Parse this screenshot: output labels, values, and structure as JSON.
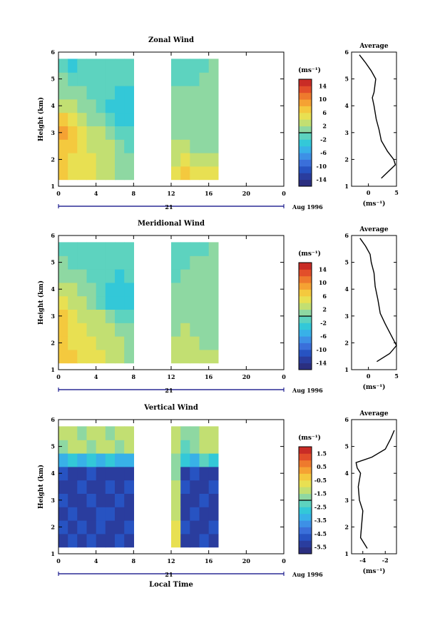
{
  "colors": {
    "palette": [
      "#2b2f80",
      "#2a3d9e",
      "#2753c2",
      "#3a6fda",
      "#3d90e6",
      "#38b1e8",
      "#33c8d8",
      "#5dd3bf",
      "#8ed8a2",
      "#c2df72",
      "#e8e052",
      "#f4c93e",
      "#f5a233",
      "#ee7a2d",
      "#e24e2a",
      "#c92c26"
    ],
    "contour": "#000000",
    "timeline": "#000080"
  },
  "panels": [
    {
      "key": "zonal",
      "title": "Zonal Wind",
      "ylabel": "Height (km)",
      "xlabel": "",
      "xticks": [
        "0",
        "4",
        "8",
        "12",
        "16",
        "20",
        "0"
      ],
      "date_day": "21",
      "date_label": "Aug 1996",
      "unit_label": "(ms⁻¹)",
      "colorbar_ticks": [
        "14",
        "10",
        "6",
        "2",
        "-2",
        "-6",
        "-10",
        "-14"
      ],
      "colorbar_range": [
        -16,
        16
      ],
      "avg_title": "Average",
      "avg_xticks": [
        "0",
        "5"
      ],
      "avg_xlim": [
        -3,
        5
      ],
      "avg_unit": "(ms⁻¹)"
    },
    {
      "key": "meridional",
      "title": "Meridional Wind",
      "ylabel": "Height (km)",
      "xlabel": "",
      "xticks": [
        "0",
        "4",
        "8",
        "12",
        "16",
        "20",
        "0"
      ],
      "date_day": "21",
      "date_label": "Aug 1996",
      "unit_label": "(ms⁻¹)",
      "colorbar_ticks": [
        "14",
        "10",
        "6",
        "2",
        "-2",
        "-6",
        "-10",
        "-14"
      ],
      "colorbar_range": [
        -16,
        16
      ],
      "avg_title": "Average",
      "avg_xticks": [
        "0",
        "5"
      ],
      "avg_xlim": [
        -3,
        5
      ],
      "avg_unit": "(ms⁻¹)"
    },
    {
      "key": "vertical",
      "title": "Vertical Wind",
      "ylabel": "Height (km)",
      "xlabel": "Local Time",
      "xticks": [
        "0",
        "4",
        "8",
        "12",
        "16",
        "20",
        "0"
      ],
      "date_day": "21",
      "date_label": "Aug 1996",
      "unit_label": "(ms⁻¹)",
      "colorbar_ticks": [
        "1.5",
        "0.5",
        "-0.5",
        "-1.5",
        "-2.5",
        "-3.5",
        "-4.5",
        "-5.5"
      ],
      "colorbar_range": [
        -6,
        2
      ],
      "avg_title": "Average",
      "avg_xticks": [
        "-4",
        "-2"
      ],
      "avg_xlim": [
        -5,
        -1
      ],
      "avg_unit": "(ms⁻¹)"
    }
  ],
  "chart_data": [
    {
      "type": "heatmap",
      "title": "Zonal Wind",
      "xlabel": "",
      "ylabel": "Height (km)",
      "xlim": [
        0,
        24
      ],
      "ylim": [
        1,
        6
      ],
      "colorbar_label": "(ms⁻¹)",
      "colorbar_range": [
        -16,
        16
      ],
      "time_hours": [
        0,
        1,
        2,
        3,
        4,
        5,
        6,
        7,
        12,
        13,
        14,
        15,
        16
      ],
      "heights_km": [
        1.5,
        2.0,
        2.5,
        3.0,
        3.5,
        4.0,
        4.5,
        5.0,
        5.5
      ],
      "values": [
        [
          6,
          5,
          4,
          4,
          3,
          3,
          1,
          0,
          4,
          6,
          5,
          4,
          4
        ],
        [
          6,
          5,
          4,
          4,
          3,
          3,
          1,
          0,
          3,
          4,
          3,
          2,
          2
        ],
        [
          7,
          6,
          4,
          3,
          3,
          2,
          0,
          -1,
          2,
          2,
          1,
          1,
          1
        ],
        [
          8,
          6,
          4,
          2,
          2,
          0,
          -2,
          -2,
          1,
          1,
          1,
          0,
          0
        ],
        [
          6,
          4,
          2,
          1,
          0,
          -2,
          -4,
          -4,
          0,
          0,
          1,
          0,
          0
        ],
        [
          3,
          2,
          1,
          0,
          -1,
          -3,
          -4,
          -4,
          0,
          1,
          1,
          0,
          0
        ],
        [
          1,
          0,
          0,
          -1,
          -1,
          -2,
          -3,
          -3,
          0,
          0,
          0,
          0,
          0
        ],
        [
          0,
          -1,
          -1,
          -1,
          -1,
          -1,
          -1,
          -2,
          -1,
          -1,
          -1,
          0,
          0
        ],
        [
          -2,
          -3,
          -2,
          -2,
          -1,
          -1,
          -1,
          -2,
          -1,
          -1,
          -1,
          -1,
          0
        ]
      ]
    },
    {
      "type": "line",
      "title": "Average",
      "xlabel": "(ms⁻¹)",
      "ylabel": "",
      "xlim": [
        -3,
        5
      ],
      "ylim": [
        1,
        6
      ],
      "x": [
        2.3,
        4.8,
        4.5,
        3.4,
        2.3,
        1.9,
        1.4,
        1.0,
        0.7,
        1.0,
        1.3,
        0.5,
        -0.5,
        -1.6
      ],
      "y": [
        1.3,
        1.8,
        2.0,
        2.3,
        2.7,
        3.1,
        3.5,
        4.0,
        4.3,
        4.5,
        5.0,
        5.3,
        5.6,
        5.9
      ]
    },
    {
      "type": "heatmap",
      "title": "Meridional Wind",
      "xlabel": "",
      "ylabel": "Height (km)",
      "xlim": [
        0,
        24
      ],
      "ylim": [
        1,
        6
      ],
      "colorbar_label": "(ms⁻¹)",
      "colorbar_range": [
        -16,
        16
      ],
      "time_hours": [
        0,
        1,
        2,
        3,
        4,
        5,
        6,
        7,
        12,
        13,
        14,
        15,
        16
      ],
      "heights_km": [
        1.5,
        2.0,
        2.5,
        3.0,
        3.5,
        4.0,
        4.5,
        5.0,
        5.5
      ],
      "values": [
        [
          7,
          6,
          5,
          4,
          4,
          3,
          2,
          1,
          3,
          3,
          2,
          2,
          2
        ],
        [
          6,
          5,
          4,
          4,
          3,
          3,
          2,
          1,
          2,
          2,
          2,
          1,
          1
        ],
        [
          6,
          5,
          4,
          3,
          3,
          2,
          1,
          0,
          1,
          2,
          1,
          1,
          0
        ],
        [
          7,
          5,
          3,
          2,
          2,
          0,
          -2,
          -2,
          0,
          1,
          0,
          0,
          0
        ],
        [
          5,
          3,
          2,
          1,
          -1,
          -3,
          -4,
          -4,
          0,
          0,
          1,
          0,
          0
        ],
        [
          3,
          2,
          1,
          0,
          -1,
          -3,
          -4,
          -3,
          0,
          0,
          0,
          0,
          0
        ],
        [
          1,
          0,
          0,
          -1,
          -1,
          -2,
          -3,
          -2,
          -1,
          0,
          0,
          0,
          0
        ],
        [
          0,
          -1,
          -1,
          -1,
          -1,
          -1,
          -1,
          -1,
          -1,
          -1,
          0,
          0,
          0
        ],
        [
          -2,
          -2,
          -2,
          -1,
          -1,
          -1,
          -1,
          -1,
          -1,
          -1,
          -1,
          -1,
          0
        ]
      ]
    },
    {
      "type": "line",
      "title": "Average",
      "xlabel": "(ms⁻¹)",
      "ylabel": "",
      "xlim": [
        -3,
        5
      ],
      "ylim": [
        1,
        6
      ],
      "x": [
        1.5,
        3.8,
        5.0,
        4.0,
        3.0,
        2.1,
        1.7,
        1.2,
        1.0,
        0.5,
        0.3,
        -0.5,
        -1.5
      ],
      "y": [
        1.3,
        1.6,
        1.9,
        2.3,
        2.7,
        3.1,
        3.6,
        4.1,
        4.6,
        5.0,
        5.3,
        5.6,
        5.9
      ]
    },
    {
      "type": "heatmap",
      "title": "Vertical Wind",
      "xlabel": "Local Time",
      "ylabel": "Height (km)",
      "xlim": [
        0,
        24
      ],
      "ylim": [
        1,
        6
      ],
      "colorbar_label": "(ms⁻¹)",
      "colorbar_range": [
        -6,
        2
      ],
      "time_hours": [
        0,
        1,
        2,
        3,
        4,
        5,
        6,
        7,
        12,
        13,
        14,
        15,
        16
      ],
      "heights_km": [
        1.5,
        2.0,
        2.5,
        3.0,
        3.5,
        4.0,
        4.5,
        5.0,
        5.5
      ],
      "values": [
        [
          -5.5,
          -5.0,
          -5.5,
          -5.0,
          -5.5,
          -5.5,
          -5.0,
          -5.5,
          -1.0,
          -5.5,
          -5.5,
          -5.0,
          -5.5
        ],
        [
          -5.0,
          -5.5,
          -5.0,
          -5.5,
          -5.0,
          -5.5,
          -5.5,
          -5.0,
          -0.8,
          -5.0,
          -5.5,
          -5.5,
          -5.0
        ],
        [
          -5.5,
          -5.0,
          -5.5,
          -5.5,
          -5.0,
          -5.0,
          -5.5,
          -5.5,
          -1.2,
          -5.5,
          -5.0,
          -5.5,
          -5.5
        ],
        [
          -5.0,
          -5.5,
          -5.5,
          -5.0,
          -5.5,
          -5.5,
          -5.0,
          -5.5,
          -1.5,
          -5.5,
          -5.5,
          -5.0,
          -5.5
        ],
        [
          -5.5,
          -5.5,
          -5.0,
          -5.5,
          -5.5,
          -5.0,
          -5.5,
          -5.0,
          -1.5,
          -5.0,
          -5.5,
          -5.5,
          -5.0
        ],
        [
          -5.0,
          -5.5,
          -5.5,
          -5.0,
          -5.5,
          -5.5,
          -5.5,
          -5.5,
          -2.0,
          -5.5,
          -5.0,
          -5.5,
          -5.5
        ],
        [
          -3.5,
          -3.0,
          -3.5,
          -3.0,
          -3.5,
          -3.0,
          -3.5,
          -3.5,
          -2.0,
          -3.0,
          -3.5,
          -2.5,
          -3.0
        ],
        [
          -1.6,
          -1.5,
          -1.5,
          -1.7,
          -1.5,
          -1.5,
          -1.6,
          -1.5,
          -1.5,
          -2.5,
          -2.0,
          -1.5,
          -1.5
        ],
        [
          -1.5,
          -1.5,
          -1.6,
          -1.5,
          -1.5,
          -1.7,
          -1.5,
          -1.5,
          -1.5,
          -2.0,
          -2.0,
          -1.5,
          -1.5
        ]
      ]
    },
    {
      "type": "line",
      "title": "Average",
      "xlabel": "(ms⁻¹)",
      "ylabel": "",
      "xlim": [
        -5,
        -1
      ],
      "ylim": [
        1,
        6
      ],
      "x": [
        -3.6,
        -4.2,
        -4.1,
        -4.0,
        -4.3,
        -4.4,
        -4.2,
        -4.5,
        -4.6,
        -3.2,
        -2.0,
        -1.5,
        -1.2
      ],
      "y": [
        1.2,
        1.6,
        2.1,
        2.6,
        3.0,
        3.5,
        4.0,
        4.2,
        4.4,
        4.6,
        4.9,
        5.3,
        5.6
      ]
    }
  ]
}
